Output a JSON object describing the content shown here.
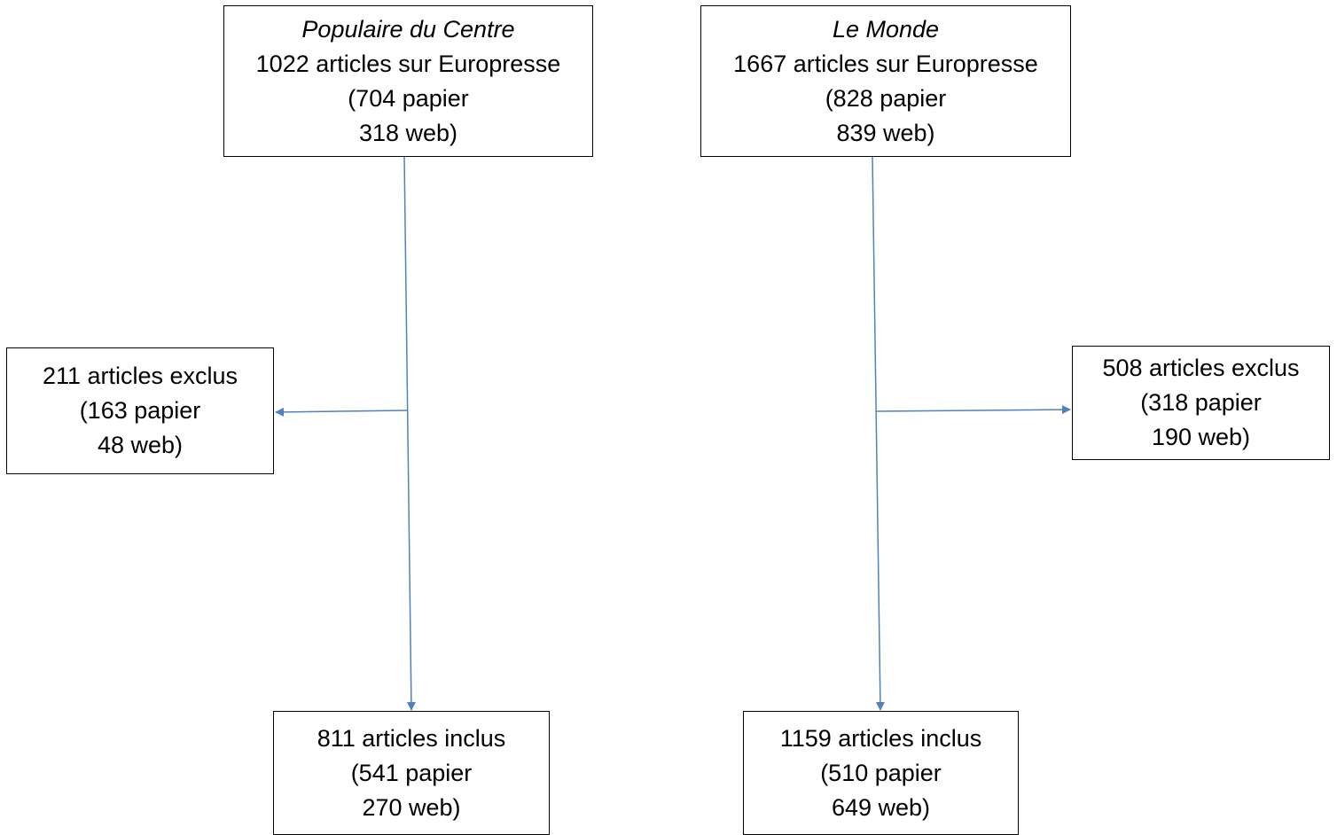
{
  "diagram": {
    "line_color": "#4f81bd",
    "populaire_du_centre": {
      "source": {
        "title": "Populaire du Centre",
        "line1": "1022 articles sur Europresse",
        "line2": "(704 papier",
        "line3": "318 web)"
      },
      "excluded": {
        "line1": "211 articles exclus",
        "line2": "(163 papier",
        "line3": "48 web)"
      },
      "included": {
        "line1": "811 articles inclus",
        "line2": "(541 papier",
        "line3": "270 web)"
      }
    },
    "le_monde": {
      "source": {
        "title": "Le Monde",
        "line1": "1667 articles sur Europresse",
        "line2": "(828 papier",
        "line3": "839 web)"
      },
      "excluded": {
        "line1": "508 articles exclus",
        "line2": "(318 papier",
        "line3": "190 web)"
      },
      "included": {
        "line1": "1159 articles inclus",
        "line2": "(510 papier",
        "line3": "649 web)"
      }
    }
  }
}
